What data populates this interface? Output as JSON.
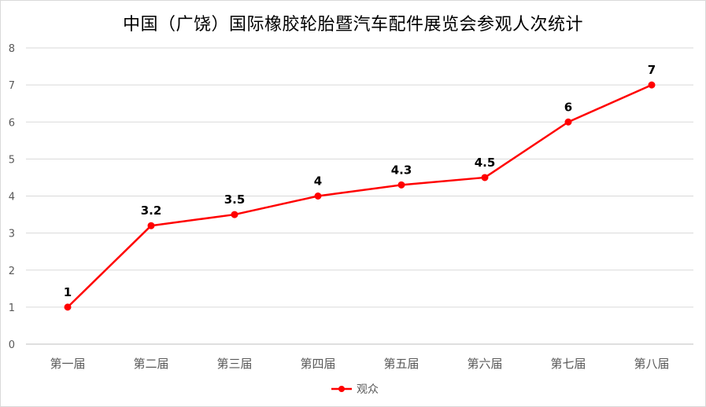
{
  "chart_data": {
    "type": "line",
    "title": "中国（广饶）国际橡胶轮胎暨汽车配件展览会参观人次统计",
    "xlabel": "",
    "ylabel": "",
    "categories": [
      "第一届",
      "第二届",
      "第三届",
      "第四届",
      "第五届",
      "第六届",
      "第七届",
      "第八届"
    ],
    "series": [
      {
        "name": "观众",
        "values": [
          1,
          3.2,
          3.5,
          4,
          4.3,
          4.5,
          6,
          7
        ],
        "color": "#ff0000"
      }
    ],
    "data_labels": [
      "1",
      "3.2",
      "3.5",
      "4",
      "4.3",
      "4.5",
      "6",
      "7"
    ],
    "ylim": [
      0,
      8
    ],
    "yticks": [
      0,
      1,
      2,
      3,
      4,
      5,
      6,
      7,
      8
    ],
    "grid": "horizontal",
    "legend_position": "bottom"
  }
}
